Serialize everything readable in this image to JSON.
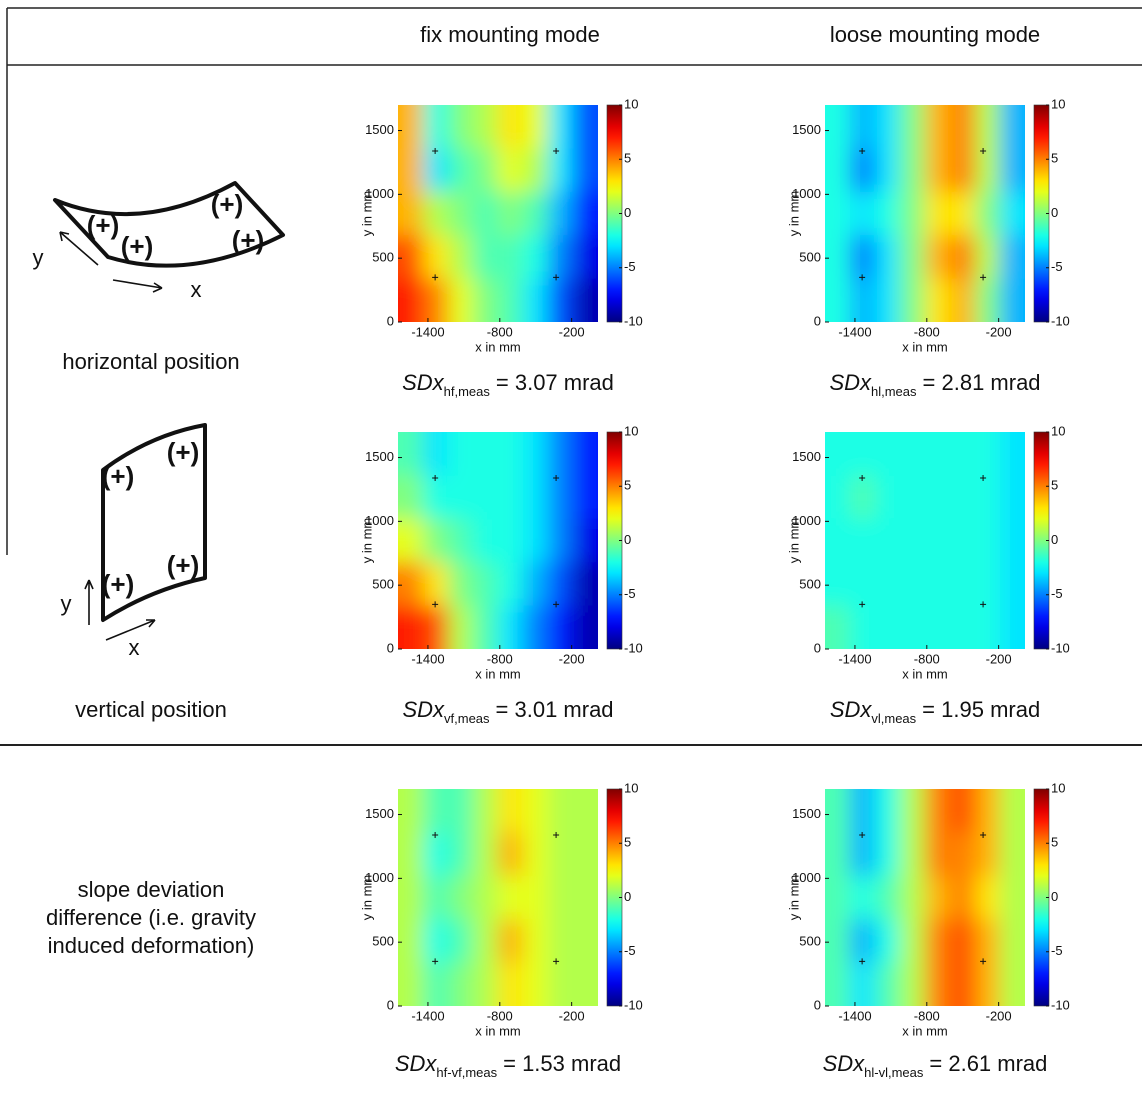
{
  "header": {
    "col1": "fix mounting mode",
    "col2": "loose mounting mode"
  },
  "rows": [
    {
      "label": [
        "horizontal position"
      ],
      "axis_y": "y",
      "axis_x": "x"
    },
    {
      "label": [
        "vertical position"
      ],
      "axis_y": "y",
      "axis_x": "x"
    },
    {
      "label": [
        "slope deviation",
        "difference (i.e. gravity",
        "induced deformation)"
      ]
    }
  ],
  "axes": {
    "xlim": [
      -1650,
      20
    ],
    "ylim": [
      0,
      1700
    ],
    "xticks": [
      -1400,
      -800,
      -200
    ],
    "yticks": [
      0,
      500,
      1000,
      1500
    ],
    "xlabel": "x in mm",
    "ylabel": "y in mm",
    "clim": [
      -10,
      10
    ],
    "cticks": [
      -10,
      -5,
      0,
      5,
      10
    ],
    "mounts": {
      "x": [
        -1340,
        -330,
        -1340,
        -330
      ],
      "y": [
        1340,
        1340,
        350,
        350
      ]
    }
  },
  "panels": [
    {
      "caption": {
        "symbol": "SDx",
        "subscript": "hf,meas",
        "text": "= 3.07 mrad"
      },
      "field": [
        [
          4,
          -2,
          0,
          1,
          3,
          2,
          -3,
          -6
        ],
        [
          4,
          -3,
          -1,
          0,
          2,
          1,
          -3,
          -6
        ],
        [
          4,
          1,
          0,
          -1,
          0,
          -1,
          -4,
          -7
        ],
        [
          6,
          3,
          1,
          -1,
          -1,
          -2,
          -5,
          -8
        ],
        [
          7,
          5,
          2,
          0,
          -1,
          -3,
          -6,
          -9
        ]
      ]
    },
    {
      "caption": {
        "symbol": "SDx",
        "subscript": "hl,meas",
        "text": "= 2.81 mrad"
      },
      "field": [
        [
          -2,
          -4,
          -3,
          0,
          4,
          5,
          1,
          -4
        ],
        [
          -2,
          -5,
          -3,
          0,
          4,
          5,
          1,
          -4
        ],
        [
          -2,
          -3,
          -2,
          0,
          3,
          3,
          0,
          -3
        ],
        [
          -2,
          -5,
          -3,
          0,
          4,
          5,
          1,
          -4
        ],
        [
          -2,
          -4,
          -3,
          0,
          3,
          4,
          0,
          -4
        ]
      ]
    },
    {
      "caption": {
        "symbol": "SDx",
        "subscript": "vf,meas",
        "text": "= 3.01 mrad"
      },
      "field": [
        [
          -1,
          -3,
          -2,
          -2,
          -2,
          -3,
          -5,
          -7
        ],
        [
          0,
          -2,
          -2,
          -2,
          -2,
          -3,
          -5,
          -7
        ],
        [
          2,
          0,
          -1,
          -2,
          -2,
          -3,
          -5,
          -8
        ],
        [
          5,
          3,
          0,
          -1,
          -2,
          -4,
          -6,
          -9
        ],
        [
          7,
          6,
          1,
          -1,
          -3,
          -5,
          -7,
          -9
        ]
      ]
    },
    {
      "caption": {
        "symbol": "SDx",
        "subscript": "vl,meas",
        "text": "= 1.95 mrad"
      },
      "field": [
        [
          -2,
          -2,
          -2,
          -2,
          -2,
          -2,
          -2,
          -3
        ],
        [
          -2,
          -1,
          -2,
          -2,
          -2,
          -2,
          -2,
          -3
        ],
        [
          -2,
          -2,
          -2,
          -2,
          -2,
          -2,
          -2,
          -3
        ],
        [
          -2,
          -2,
          -2,
          -2,
          -2,
          -2,
          -2,
          -3
        ],
        [
          -1,
          -2,
          -2,
          -2,
          -2,
          -2,
          -2,
          -3
        ]
      ]
    },
    {
      "caption": {
        "symbol": "SDx",
        "subscript": "hf-vf,meas",
        "text": "= 1.53 mrad"
      },
      "field": [
        [
          1,
          -1,
          -1,
          1,
          3,
          2,
          1,
          1
        ],
        [
          1,
          -2,
          -1,
          1,
          4,
          2,
          1,
          1
        ],
        [
          1,
          -1,
          0,
          1,
          2,
          2,
          1,
          1
        ],
        [
          1,
          -2,
          -1,
          1,
          4,
          2,
          1,
          1
        ],
        [
          1,
          -1,
          0,
          1,
          3,
          2,
          1,
          1
        ]
      ]
    },
    {
      "caption": {
        "symbol": "SDx",
        "subscript": "hl-vl,meas",
        "text": "= 2.61 mrad"
      },
      "field": [
        [
          -1,
          -4,
          -2,
          1,
          5,
          6,
          4,
          1
        ],
        [
          -1,
          -4,
          -2,
          1,
          5,
          5,
          4,
          1
        ],
        [
          -1,
          -2,
          -1,
          1,
          4,
          5,
          3,
          1
        ],
        [
          -1,
          -4,
          -2,
          1,
          5,
          6,
          4,
          1
        ],
        [
          -1,
          -3,
          -1,
          1,
          5,
          6,
          4,
          1
        ]
      ]
    }
  ]
}
